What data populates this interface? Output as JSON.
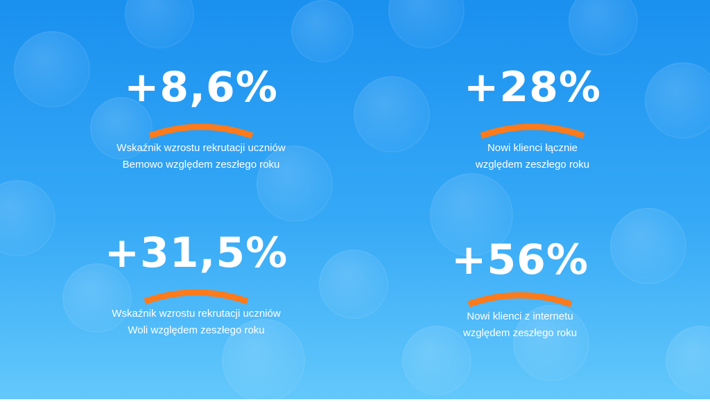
{
  "colors": {
    "background_top": "#1a90ef",
    "background_bottom": "#63c8fb",
    "text": "#ffffff",
    "accent": "#ff7a1a"
  },
  "stats": [
    {
      "value": "+8,6%",
      "line1": "Wskaźnik wzrostu rekrutacji uczniów",
      "line2": "Bemowo względem zeszłego roku"
    },
    {
      "value": "+28%",
      "line1": "Nowi klienci łącznie",
      "line2": "względem zeszłego roku"
    },
    {
      "value": "+31,5%",
      "line1": "Wskaźnik wzrostu rekrutacji uczniów",
      "line2": "Woli względem zeszłego roku"
    },
    {
      "value": "+56%",
      "line1": "Nowi klienci z internetu",
      "line2": "względem zeszłego roku"
    }
  ]
}
